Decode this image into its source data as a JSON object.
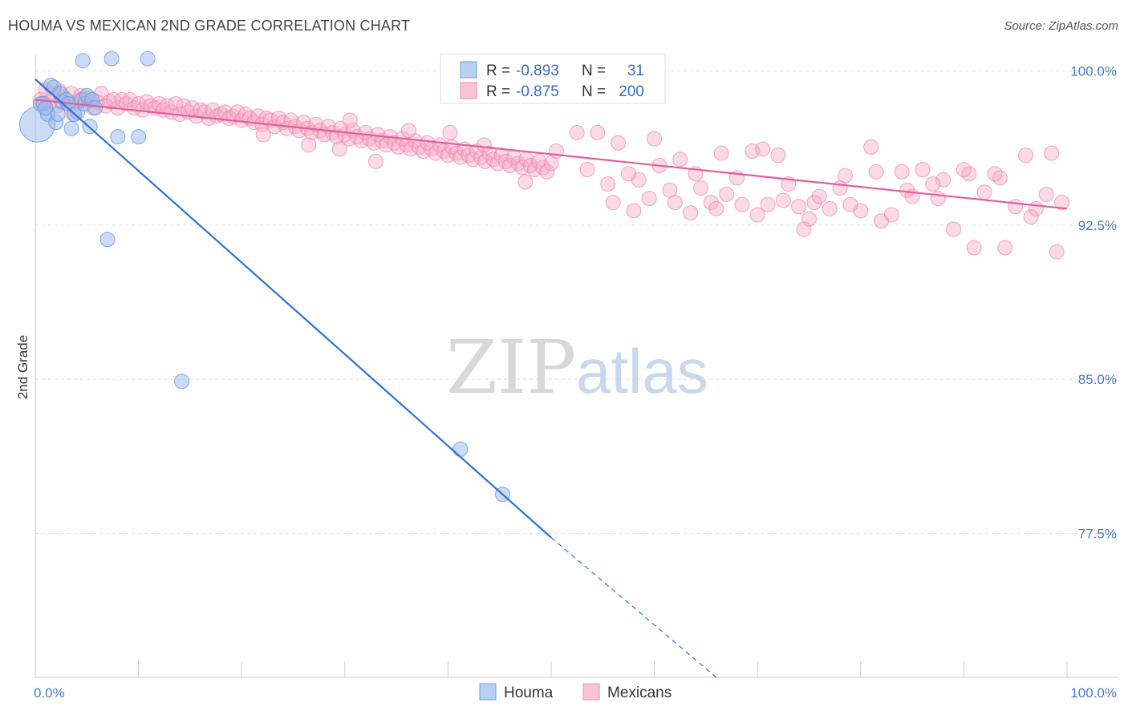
{
  "title": "HOUMA VS MEXICAN 2ND GRADE CORRELATION CHART",
  "source": "Source: ZipAtlas.com",
  "watermark": {
    "zip": "ZIP",
    "atlas": "atlas"
  },
  "colors": {
    "houma": "#6c9fe0",
    "houma_line": "#2f72d0",
    "mexicans": "#f08cb0",
    "mexicans_line": "#e0609a",
    "axis_text": "#4a7cc4"
  },
  "legend": {
    "houma": {
      "r_label": "R = ",
      "r_value": "-0.893",
      "n_label": "N = ",
      "n_value": "31"
    },
    "mexicans": {
      "r_label": "R = ",
      "r_value": "-0.875",
      "n_label": "N = ",
      "n_value": "200"
    }
  },
  "chart_data": {
    "type": "scatter",
    "xlabel": "",
    "ylabel": "2nd Grade",
    "x_tick_labels": [
      "0.0%",
      "100.0%"
    ],
    "y_tick_labels": [
      "100.0%",
      "92.5%",
      "85.0%",
      "77.5%"
    ],
    "y_tick_values": [
      100.0,
      92.5,
      85.0,
      77.5
    ],
    "xlim": [
      0,
      100
    ],
    "ylim": [
      70.5,
      100.8
    ],
    "grid": true,
    "legend_position": "top-center",
    "series": [
      {
        "name": "Houma",
        "r": -0.893,
        "n": 31,
        "trend": {
          "x0": 0,
          "y0": 99.6,
          "x1": 50,
          "y1": 77.3,
          "dashed_to_x": 66
        },
        "points": [
          [
            0.2,
            97.4
          ],
          [
            0.5,
            98.4
          ],
          [
            0.8,
            98.4
          ],
          [
            1.2,
            97.9
          ],
          [
            1.5,
            99.3
          ],
          [
            1.8,
            99.2
          ],
          [
            2.0,
            97.5
          ],
          [
            2.2,
            97.9
          ],
          [
            2.4,
            98.9
          ],
          [
            2.6,
            98.5
          ],
          [
            3.0,
            98.6
          ],
          [
            3.2,
            98.4
          ],
          [
            3.5,
            97.2
          ],
          [
            3.8,
            97.9
          ],
          [
            4.1,
            98.0
          ],
          [
            4.5,
            98.6
          ],
          [
            4.6,
            100.5
          ],
          [
            4.8,
            98.4
          ],
          [
            5.0,
            98.8
          ],
          [
            5.3,
            97.3
          ],
          [
            5.5,
            98.6
          ],
          [
            5.8,
            98.2
          ],
          [
            7.4,
            100.6
          ],
          [
            8.0,
            96.8
          ],
          [
            10.0,
            96.8
          ],
          [
            10.9,
            100.6
          ],
          [
            7.0,
            91.8
          ],
          [
            14.2,
            84.9
          ],
          [
            41.2,
            81.6
          ],
          [
            45.3,
            79.4
          ],
          [
            1.0,
            98.2
          ]
        ]
      },
      {
        "name": "Mexicans",
        "r": -0.875,
        "n": 200,
        "trend": {
          "x0": 0,
          "y0": 98.6,
          "x1": 100,
          "y1": 93.3
        },
        "points": [
          [
            0.5,
            98.6
          ],
          [
            1.0,
            99.1
          ],
          [
            1.4,
            98.5
          ],
          [
            1.8,
            98.9
          ],
          [
            2.1,
            98.3
          ],
          [
            2.4,
            99.0
          ],
          [
            2.8,
            98.7
          ],
          [
            3.1,
            98.4
          ],
          [
            3.5,
            98.9
          ],
          [
            3.7,
            97.9
          ],
          [
            4.0,
            98.5
          ],
          [
            4.4,
            98.8
          ],
          [
            4.8,
            98.6
          ],
          [
            5.2,
            98.7
          ],
          [
            5.6,
            98.2
          ],
          [
            6.0,
            98.5
          ],
          [
            6.4,
            98.9
          ],
          [
            6.8,
            98.3
          ],
          [
            7.2,
            98.5
          ],
          [
            7.6,
            98.6
          ],
          [
            8.0,
            98.2
          ],
          [
            8.4,
            98.6
          ],
          [
            8.8,
            98.4
          ],
          [
            9.2,
            98.6
          ],
          [
            9.6,
            98.2
          ],
          [
            10.0,
            98.4
          ],
          [
            10.4,
            98.1
          ],
          [
            10.8,
            98.5
          ],
          [
            11.2,
            98.3
          ],
          [
            11.6,
            98.2
          ],
          [
            12.0,
            98.4
          ],
          [
            12.4,
            98.1
          ],
          [
            12.8,
            98.3
          ],
          [
            13.2,
            98.0
          ],
          [
            13.6,
            98.4
          ],
          [
            14.0,
            97.9
          ],
          [
            14.4,
            98.3
          ],
          [
            14.8,
            98.0
          ],
          [
            15.2,
            98.2
          ],
          [
            15.6,
            97.8
          ],
          [
            16.0,
            98.1
          ],
          [
            16.4,
            98.0
          ],
          [
            16.8,
            97.7
          ],
          [
            17.2,
            98.1
          ],
          [
            17.6,
            97.8
          ],
          [
            18.0,
            97.9
          ],
          [
            18.4,
            98.0
          ],
          [
            18.8,
            97.7
          ],
          [
            19.2,
            97.8
          ],
          [
            19.6,
            98.0
          ],
          [
            20.0,
            97.6
          ],
          [
            20.4,
            97.9
          ],
          [
            20.8,
            97.7
          ],
          [
            21.2,
            97.5
          ],
          [
            21.6,
            97.8
          ],
          [
            22.0,
            97.4
          ],
          [
            22.4,
            97.7
          ],
          [
            22.8,
            97.6
          ],
          [
            23.2,
            97.3
          ],
          [
            23.6,
            97.7
          ],
          [
            24.0,
            97.5
          ],
          [
            24.4,
            97.2
          ],
          [
            24.8,
            97.6
          ],
          [
            25.2,
            97.3
          ],
          [
            25.6,
            97.1
          ],
          [
            26.0,
            97.5
          ],
          [
            26.4,
            97.2
          ],
          [
            26.8,
            97.0
          ],
          [
            27.2,
            97.4
          ],
          [
            27.6,
            97.1
          ],
          [
            28.0,
            96.9
          ],
          [
            28.4,
            97.3
          ],
          [
            28.8,
            97.0
          ],
          [
            29.2,
            96.8
          ],
          [
            29.6,
            97.2
          ],
          [
            30.0,
            96.9
          ],
          [
            30.4,
            96.7
          ],
          [
            30.8,
            97.1
          ],
          [
            31.2,
            96.8
          ],
          [
            31.6,
            96.6
          ],
          [
            32.0,
            97.0
          ],
          [
            32.4,
            96.7
          ],
          [
            32.8,
            96.5
          ],
          [
            33.2,
            96.9
          ],
          [
            33.6,
            96.6
          ],
          [
            34.0,
            96.4
          ],
          [
            34.4,
            96.8
          ],
          [
            34.8,
            96.5
          ],
          [
            35.2,
            96.3
          ],
          [
            35.6,
            96.7
          ],
          [
            36.0,
            96.4
          ],
          [
            36.4,
            96.2
          ],
          [
            36.8,
            96.6
          ],
          [
            37.2,
            96.3
          ],
          [
            37.6,
            96.1
          ],
          [
            38.0,
            96.5
          ],
          [
            38.4,
            96.2
          ],
          [
            38.8,
            96.0
          ],
          [
            39.2,
            96.4
          ],
          [
            39.6,
            96.1
          ],
          [
            40.0,
            95.9
          ],
          [
            40.4,
            96.3
          ],
          [
            40.8,
            96.0
          ],
          [
            41.2,
            95.8
          ],
          [
            41.6,
            96.2
          ],
          [
            42.0,
            95.9
          ],
          [
            42.4,
            95.7
          ],
          [
            42.8,
            96.1
          ],
          [
            43.2,
            95.8
          ],
          [
            43.6,
            95.6
          ],
          [
            44.0,
            96.0
          ],
          [
            44.4,
            95.7
          ],
          [
            44.8,
            95.5
          ],
          [
            45.2,
            95.9
          ],
          [
            45.6,
            95.6
          ],
          [
            46.0,
            95.4
          ],
          [
            46.4,
            95.8
          ],
          [
            46.8,
            95.5
          ],
          [
            47.2,
            95.3
          ],
          [
            47.6,
            95.7
          ],
          [
            48.0,
            95.4
          ],
          [
            48.4,
            95.2
          ],
          [
            48.8,
            95.6
          ],
          [
            49.2,
            95.3
          ],
          [
            49.6,
            95.1
          ],
          [
            50.0,
            95.5
          ],
          [
            30.5,
            97.6
          ],
          [
            22.1,
            96.9
          ],
          [
            26.5,
            96.4
          ],
          [
            29.5,
            96.2
          ],
          [
            33.0,
            95.6
          ],
          [
            36.2,
            97.1
          ],
          [
            40.2,
            97.0
          ],
          [
            43.5,
            96.4
          ],
          [
            47.5,
            94.6
          ],
          [
            50.5,
            96.1
          ],
          [
            52.5,
            97.0
          ],
          [
            54.5,
            97.0
          ],
          [
            56.5,
            96.5
          ],
          [
            58.5,
            94.7
          ],
          [
            60.5,
            95.4
          ],
          [
            62.5,
            95.7
          ],
          [
            64.5,
            94.3
          ],
          [
            66.5,
            96.0
          ],
          [
            68.0,
            94.8
          ],
          [
            69.5,
            96.1
          ],
          [
            71.0,
            93.5
          ],
          [
            72.5,
            93.7
          ],
          [
            74.0,
            93.4
          ],
          [
            75.5,
            93.6
          ],
          [
            77.0,
            93.3
          ],
          [
            78.5,
            94.9
          ],
          [
            80.0,
            93.2
          ],
          [
            81.5,
            95.1
          ],
          [
            83.0,
            93.0
          ],
          [
            84.5,
            94.2
          ],
          [
            86.0,
            95.2
          ],
          [
            87.5,
            93.8
          ],
          [
            89.0,
            92.3
          ],
          [
            90.5,
            95.0
          ],
          [
            92.0,
            94.1
          ],
          [
            93.5,
            94.8
          ],
          [
            95.0,
            93.4
          ],
          [
            96.5,
            92.9
          ],
          [
            98.0,
            94.0
          ],
          [
            99.5,
            93.6
          ],
          [
            53.5,
            95.2
          ],
          [
            55.5,
            94.5
          ],
          [
            57.5,
            95.0
          ],
          [
            59.5,
            93.8
          ],
          [
            61.5,
            94.2
          ],
          [
            63.5,
            93.1
          ],
          [
            65.5,
            93.6
          ],
          [
            67.0,
            94.0
          ],
          [
            70.0,
            93.0
          ],
          [
            73.0,
            94.5
          ],
          [
            76.0,
            93.9
          ],
          [
            79.0,
            93.5
          ],
          [
            82.0,
            92.7
          ],
          [
            85.0,
            93.9
          ],
          [
            88.0,
            94.7
          ],
          [
            91.0,
            91.4
          ],
          [
            94.0,
            91.4
          ],
          [
            97.0,
            93.3
          ],
          [
            99.0,
            91.2
          ],
          [
            60.0,
            96.7
          ],
          [
            64.0,
            95.0
          ],
          [
            68.5,
            93.5
          ],
          [
            72.0,
            95.9
          ],
          [
            75.0,
            92.8
          ],
          [
            78.0,
            94.3
          ],
          [
            81.0,
            96.3
          ],
          [
            84.0,
            95.1
          ],
          [
            87.0,
            94.5
          ],
          [
            90.0,
            95.2
          ],
          [
            93.0,
            95.0
          ],
          [
            96.0,
            95.9
          ],
          [
            98.5,
            96.0
          ],
          [
            56.0,
            93.6
          ],
          [
            58.0,
            93.2
          ],
          [
            62.0,
            93.6
          ],
          [
            66.0,
            93.3
          ],
          [
            70.5,
            96.2
          ],
          [
            74.5,
            92.3
          ]
        ]
      }
    ]
  },
  "bottom_legend": {
    "houma": "Houma",
    "mexicans": "Mexicans"
  }
}
